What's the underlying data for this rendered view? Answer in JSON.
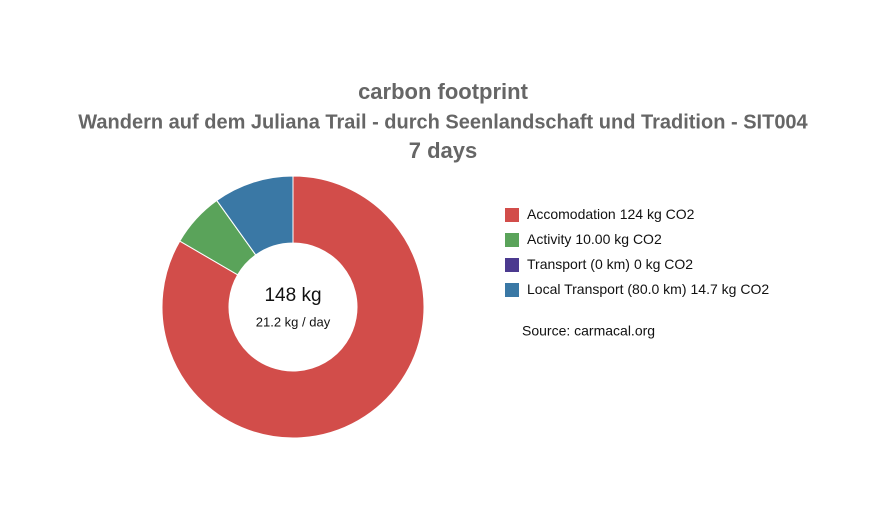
{
  "chart_data": {
    "type": "donut",
    "title": "carbon footprint",
    "subtitle": "Wandern auf dem Juliana Trail - durch Seenlandschaft und Tradition - SIT004",
    "subtitle2": "7 days",
    "center_label": "148 kg",
    "center_sublabel": "21.2 kg / day",
    "source": "Source: carmacal.org",
    "legend": "right",
    "categories": [
      "Accomodation",
      "Activity",
      "Transport (0 km)",
      "Local Transport (80.0 km)"
    ],
    "values": [
      124,
      10.0,
      0,
      14.7
    ],
    "value_labels": [
      "124 kg CO2",
      "10.00 kg CO2",
      "0 kg CO2",
      "14.7 kg CO2"
    ],
    "colors": [
      "#d24d4a",
      "#5aa35a",
      "#4b3a8f",
      "#3a78a5"
    ]
  }
}
